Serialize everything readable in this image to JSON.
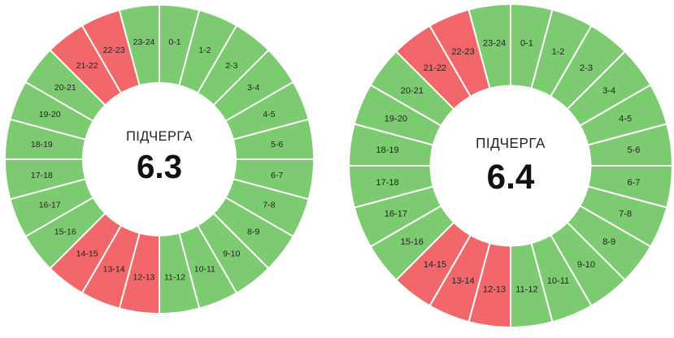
{
  "colors": {
    "on": "#7dcb70",
    "off": "#f2686a",
    "separator": "#ffffff",
    "center": "#ffffff"
  },
  "wheels": [
    {
      "title": "ПІДЧЕРГА",
      "value": "6.3",
      "hours": [
        {
          "label": "0-1",
          "status": "on"
        },
        {
          "label": "1-2",
          "status": "on"
        },
        {
          "label": "2-3",
          "status": "on"
        },
        {
          "label": "3-4",
          "status": "on"
        },
        {
          "label": "4-5",
          "status": "on"
        },
        {
          "label": "5-6",
          "status": "on"
        },
        {
          "label": "6-7",
          "status": "on"
        },
        {
          "label": "7-8",
          "status": "on"
        },
        {
          "label": "8-9",
          "status": "on"
        },
        {
          "label": "9-10",
          "status": "on"
        },
        {
          "label": "10-11",
          "status": "on"
        },
        {
          "label": "11-12",
          "status": "on"
        },
        {
          "label": "12-13",
          "status": "off"
        },
        {
          "label": "13-14",
          "status": "off"
        },
        {
          "label": "14-15",
          "status": "off"
        },
        {
          "label": "15-16",
          "status": "on"
        },
        {
          "label": "16-17",
          "status": "on"
        },
        {
          "label": "17-18",
          "status": "on"
        },
        {
          "label": "18-19",
          "status": "on"
        },
        {
          "label": "19-20",
          "status": "on"
        },
        {
          "label": "20-21",
          "status": "on"
        },
        {
          "label": "21-22",
          "status": "off"
        },
        {
          "label": "22-23",
          "status": "off"
        },
        {
          "label": "23-24",
          "status": "on"
        }
      ]
    },
    {
      "title": "ПІДЧЕРГА",
      "value": "6.4",
      "hours": [
        {
          "label": "0-1",
          "status": "on"
        },
        {
          "label": "1-2",
          "status": "on"
        },
        {
          "label": "2-3",
          "status": "on"
        },
        {
          "label": "3-4",
          "status": "on"
        },
        {
          "label": "4-5",
          "status": "on"
        },
        {
          "label": "5-6",
          "status": "on"
        },
        {
          "label": "6-7",
          "status": "on"
        },
        {
          "label": "7-8",
          "status": "on"
        },
        {
          "label": "8-9",
          "status": "on"
        },
        {
          "label": "9-10",
          "status": "on"
        },
        {
          "label": "10-11",
          "status": "on"
        },
        {
          "label": "11-12",
          "status": "on"
        },
        {
          "label": "12-13",
          "status": "off"
        },
        {
          "label": "13-14",
          "status": "off"
        },
        {
          "label": "14-15",
          "status": "off"
        },
        {
          "label": "15-16",
          "status": "on"
        },
        {
          "label": "16-17",
          "status": "on"
        },
        {
          "label": "17-18",
          "status": "on"
        },
        {
          "label": "18-19",
          "status": "on"
        },
        {
          "label": "19-20",
          "status": "on"
        },
        {
          "label": "20-21",
          "status": "on"
        },
        {
          "label": "21-22",
          "status": "off"
        },
        {
          "label": "22-23",
          "status": "off"
        },
        {
          "label": "23-24",
          "status": "on"
        }
      ]
    }
  ]
}
